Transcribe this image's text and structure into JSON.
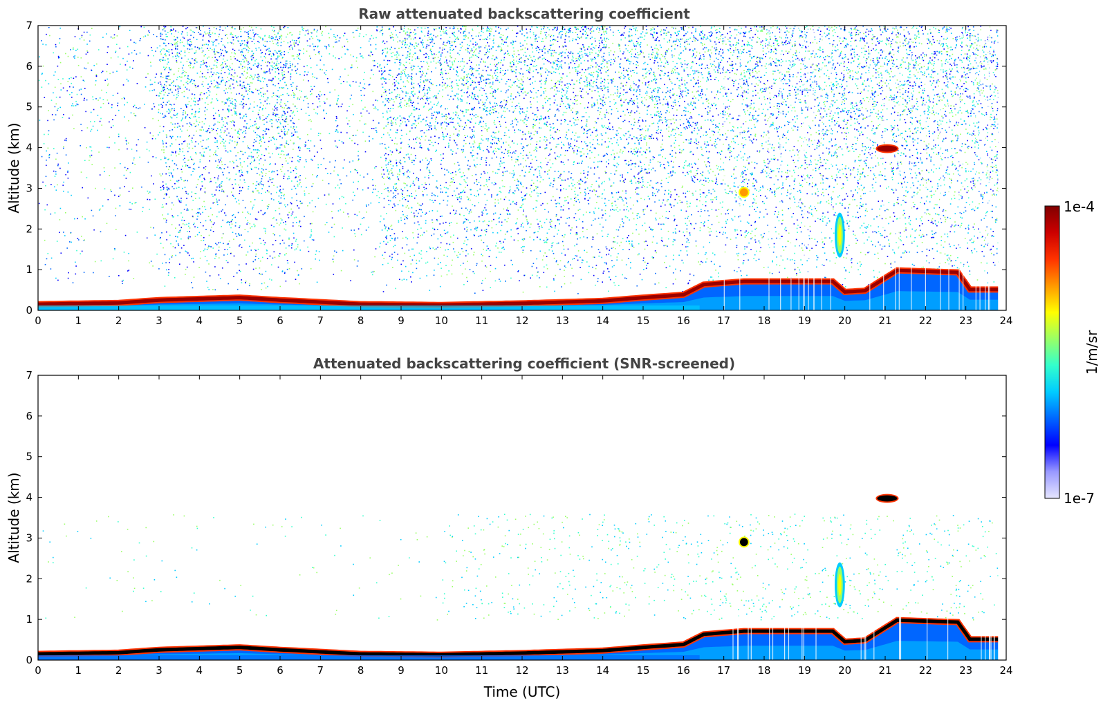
{
  "chart_data": [
    {
      "type": "heatmap",
      "title": "Raw attenuated backscattering coefficient",
      "xlabel": "",
      "ylabel": "Altitude (km)",
      "xlim": [
        0,
        24
      ],
      "ylim": [
        0,
        7
      ],
      "xticks": [
        "0",
        "1",
        "2",
        "3",
        "4",
        "5",
        "6",
        "7",
        "8",
        "9",
        "10",
        "11",
        "12",
        "13",
        "14",
        "15",
        "16",
        "17",
        "18",
        "19",
        "20",
        "21",
        "22",
        "23",
        "24"
      ],
      "yticks": [
        "0",
        "1",
        "2",
        "3",
        "4",
        "5",
        "6",
        "7"
      ],
      "screened": false,
      "boundary_layer_top_km": [
        {
          "t": 0,
          "h": 0.22
        },
        {
          "t": 2,
          "h": 0.25
        },
        {
          "t": 3,
          "h": 0.32
        },
        {
          "t": 4,
          "h": 0.35
        },
        {
          "t": 5,
          "h": 0.38
        },
        {
          "t": 6,
          "h": 0.32
        },
        {
          "t": 8,
          "h": 0.22
        },
        {
          "t": 10,
          "h": 0.2
        },
        {
          "t": 12,
          "h": 0.24
        },
        {
          "t": 14,
          "h": 0.3
        },
        {
          "t": 15,
          "h": 0.38
        },
        {
          "t": 16,
          "h": 0.45
        },
        {
          "t": 16.5,
          "h": 0.7
        },
        {
          "t": 17.5,
          "h": 0.78
        },
        {
          "t": 19.7,
          "h": 0.78
        },
        {
          "t": 20,
          "h": 0.52
        },
        {
          "t": 20.5,
          "h": 0.55
        },
        {
          "t": 21.3,
          "h": 1.05
        },
        {
          "t": 22.8,
          "h": 1.0
        },
        {
          "t": 23.1,
          "h": 0.58
        },
        {
          "t": 23.8,
          "h": 0.58
        }
      ],
      "features": [
        {
          "name": "cloud",
          "time_utc": [
            20.8,
            21.3
          ],
          "altitude_km": [
            3.9,
            4.05
          ]
        },
        {
          "name": "cloud",
          "time_utc": [
            17.4,
            17.6
          ],
          "altitude_km": [
            2.8,
            3.0
          ]
        },
        {
          "name": "plume",
          "time_utc": [
            19.8,
            19.95
          ],
          "altitude_km": [
            1.4,
            2.3
          ]
        }
      ]
    },
    {
      "type": "heatmap",
      "title": "Attenuated backscattering coefficient (SNR-screened)",
      "xlabel": "Time (UTC)",
      "ylabel": "Altitude (km)",
      "xlim": [
        0,
        24
      ],
      "ylim": [
        0,
        7
      ],
      "xticks": [
        "0",
        "1",
        "2",
        "3",
        "4",
        "5",
        "6",
        "7",
        "8",
        "9",
        "10",
        "11",
        "12",
        "13",
        "14",
        "15",
        "16",
        "17",
        "18",
        "19",
        "20",
        "21",
        "22",
        "23",
        "24"
      ],
      "yticks": [
        "0",
        "1",
        "2",
        "3",
        "4",
        "5",
        "6",
        "7"
      ],
      "screened": true,
      "boundary_layer_top_km": [
        {
          "t": 0,
          "h": 0.22
        },
        {
          "t": 2,
          "h": 0.25
        },
        {
          "t": 3,
          "h": 0.32
        },
        {
          "t": 4,
          "h": 0.35
        },
        {
          "t": 5,
          "h": 0.38
        },
        {
          "t": 6,
          "h": 0.32
        },
        {
          "t": 8,
          "h": 0.22
        },
        {
          "t": 10,
          "h": 0.2
        },
        {
          "t": 12,
          "h": 0.24
        },
        {
          "t": 14,
          "h": 0.3
        },
        {
          "t": 15,
          "h": 0.38
        },
        {
          "t": 16,
          "h": 0.45
        },
        {
          "t": 16.5,
          "h": 0.7
        },
        {
          "t": 17.5,
          "h": 0.78
        },
        {
          "t": 19.7,
          "h": 0.78
        },
        {
          "t": 20,
          "h": 0.52
        },
        {
          "t": 20.5,
          "h": 0.55
        },
        {
          "t": 21.3,
          "h": 1.05
        },
        {
          "t": 22.8,
          "h": 1.0
        },
        {
          "t": 23.1,
          "h": 0.58
        },
        {
          "t": 23.8,
          "h": 0.58
        }
      ],
      "features": [
        {
          "name": "cloud",
          "time_utc": [
            20.8,
            21.3
          ],
          "altitude_km": [
            3.9,
            4.05
          ]
        },
        {
          "name": "cloud",
          "time_utc": [
            17.4,
            17.6
          ],
          "altitude_km": [
            2.8,
            3.0
          ]
        },
        {
          "name": "plume",
          "time_utc": [
            19.8,
            19.95
          ],
          "altitude_km": [
            1.4,
            2.3
          ]
        }
      ]
    }
  ],
  "colorbar": {
    "label": "1/m/sr",
    "max_label": "1e-4",
    "min_label": "1e-7",
    "colors": [
      "#e6e6ff",
      "#9999ff",
      "#0000ff",
      "#0066ff",
      "#00ccff",
      "#33ffcc",
      "#99ff66",
      "#ffff00",
      "#ff9900",
      "#ff3300",
      "#cc0000",
      "#800000"
    ]
  }
}
